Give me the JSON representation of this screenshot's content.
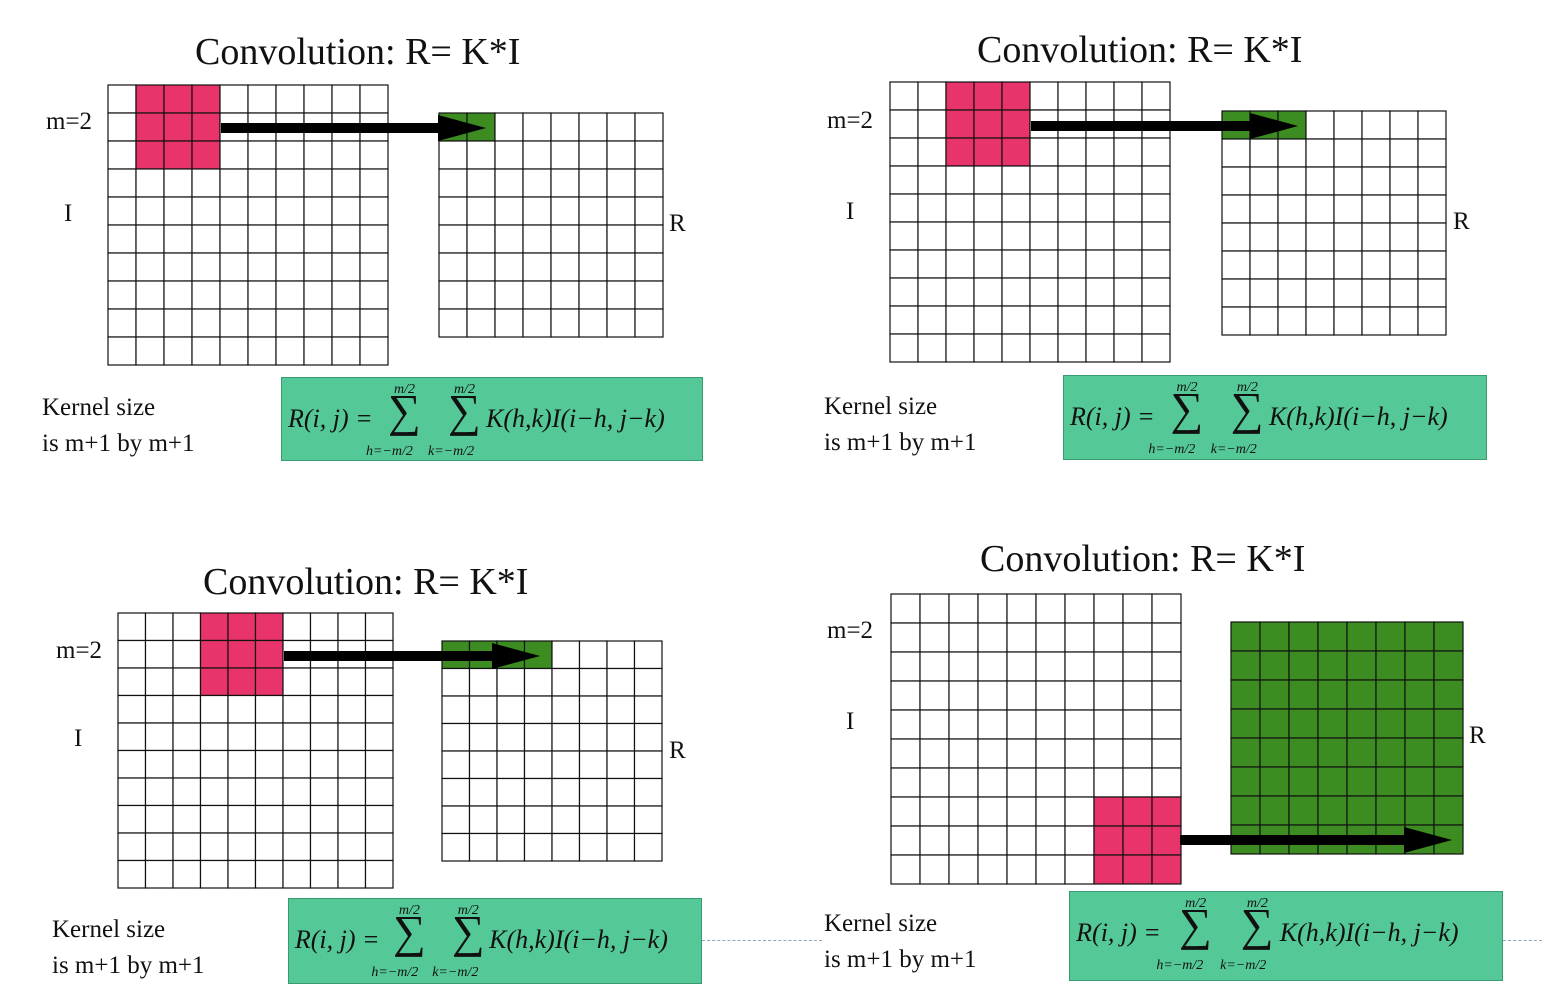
{
  "title": "Convolution: R= K*I",
  "m_label": "m=2",
  "input_label": "I",
  "result_label": "R",
  "caption": {
    "line1": "Kernel size",
    "line2": "is m+1 by m+1"
  },
  "formula": {
    "lhs": "R(i, j) =",
    "sum_upper": "m/2",
    "sum_lower_h": "h=−m/2",
    "sum_lower_k": "k=−m/2",
    "sigma": "∑",
    "rhs": "K(h,k)I(i−h, j−k)"
  },
  "colors": {
    "kernel": "#e8336b",
    "result_fill": "#3c8c22",
    "formula_bg": "#55c898",
    "arrow": "#000000"
  },
  "grid": {
    "input_cols": 10,
    "input_rows": 10,
    "result_cols": 8,
    "result_rows": 8,
    "kernel_size": 3
  },
  "panels": [
    {
      "name": "panel-step-1",
      "kernel_row": 0,
      "kernel_col": 1,
      "filled_result_cells": 2
    },
    {
      "name": "panel-step-2",
      "kernel_row": 0,
      "kernel_col": 2,
      "filled_result_cells": 3
    },
    {
      "name": "panel-step-3",
      "kernel_row": 0,
      "kernel_col": 3,
      "filled_result_cells": 4
    },
    {
      "name": "panel-step-final",
      "kernel_row": 7,
      "kernel_col": 7,
      "filled_result_cells": 64
    }
  ]
}
